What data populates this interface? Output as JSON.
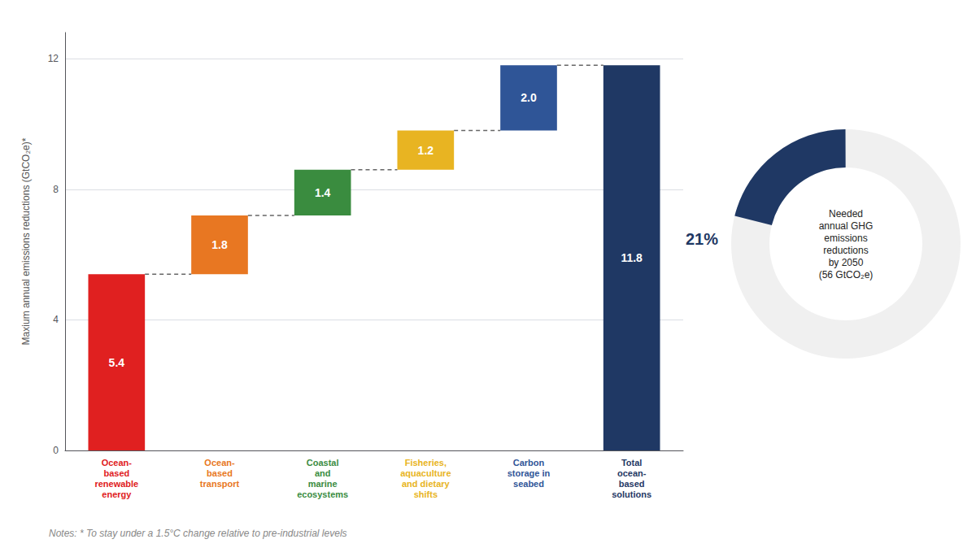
{
  "chart_data": [
    {
      "type": "waterfall",
      "categories": [
        "Ocean-\nbased\nrenewable\nenergy",
        "Ocean-\nbased\ntransport",
        "Coastal\nand\nmarine\necosystems",
        "Fisheries,\naquaculture\nand dietary\nshifts",
        "Carbon\nstorage in\nseabed",
        "Total\nocean-\nbased\nsolutions"
      ],
      "values": [
        5.4,
        1.8,
        1.4,
        1.2,
        2.0,
        11.8
      ],
      "bases": [
        0,
        5.4,
        7.2,
        8.6,
        9.8,
        0
      ],
      "value_labels": [
        "5.4",
        "1.8",
        "1.4",
        "1.2",
        "2.0",
        "11.8"
      ],
      "colors": [
        "#e02020",
        "#e87722",
        "#3a8c3f",
        "#e8b422",
        "#2f5597",
        "#1f3864"
      ],
      "ylabel": "Maxium annual emissions reductions (GtCO₂e)*",
      "ylim": [
        0,
        12.8
      ],
      "yticks": [
        0,
        4,
        8,
        12
      ],
      "grid": true,
      "data_labels": true,
      "annotations": [
        "Notes: * To stay under a 1.5°C change relative to pre-industrial levels"
      ]
    },
    {
      "type": "donut",
      "values": [
        21
      ],
      "value_labels": [
        "21%"
      ],
      "color": "#1f3864",
      "ylim": [
        0,
        100
      ],
      "tick_labels": false,
      "annotations": [
        "Needed\nannual GHG\nemissions\nreductions\nby 2050\n(56 GtCO₂e)"
      ]
    }
  ]
}
